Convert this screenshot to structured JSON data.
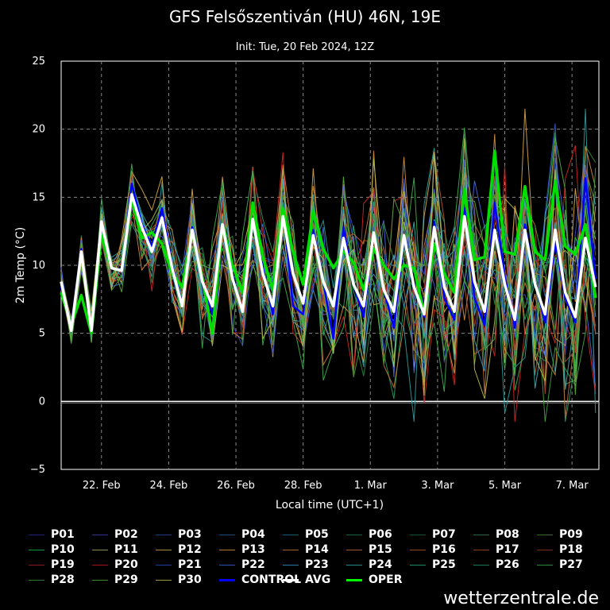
{
  "chart_data": {
    "type": "line",
    "title": "GFS Felsőszentiván (HU) 46N, 19E",
    "subtitle": "Init: Tue, 20 Feb 2024, 12Z",
    "ylabel": "2m Temp (°C)",
    "xlabel": "Local time (UTC+1)",
    "ylim": [
      -5,
      25
    ],
    "yticks": [
      "25",
      "20",
      "15",
      "10",
      "5",
      "0",
      "−5"
    ],
    "ytick_values": [
      25,
      20,
      15,
      10,
      5,
      0,
      -5
    ],
    "xlim": [
      0,
      160
    ],
    "xticks": [
      {
        "label": "22. Feb",
        "x": 12
      },
      {
        "label": "24. Feb",
        "x": 32
      },
      {
        "label": "26. Feb",
        "x": 52
      },
      {
        "label": "28. Feb",
        "x": 72
      },
      {
        "label": "1. Mar",
        "x": 92
      },
      {
        "label": "3. Mar",
        "x": 112
      },
      {
        "label": "5. Mar",
        "x": 132
      },
      {
        "label": "7. Mar",
        "x": 152
      }
    ],
    "x": [
      0,
      3,
      6,
      9,
      12,
      15,
      18,
      21,
      24,
      27,
      30,
      33,
      36,
      39,
      42,
      45,
      48,
      51,
      54,
      57,
      60,
      63,
      66,
      69,
      72,
      75,
      78,
      81,
      84,
      87,
      90,
      93,
      96,
      99,
      102,
      105,
      108,
      111,
      114,
      117,
      120,
      123,
      126,
      129,
      132,
      135,
      138,
      141,
      144,
      147,
      150,
      153,
      156,
      159
    ],
    "avg": [
      8.8,
      5.2,
      11.0,
      5.2,
      13.2,
      9.8,
      9.6,
      15.2,
      12.8,
      11.0,
      13.5,
      9.8,
      7.0,
      12.6,
      8.8,
      7.0,
      13.0,
      9.0,
      6.6,
      13.4,
      9.4,
      7.0,
      13.6,
      9.4,
      7.2,
      12.2,
      8.8,
      7.0,
      12.0,
      8.6,
      7.0,
      12.4,
      8.2,
      6.6,
      12.2,
      8.4,
      6.4,
      12.8,
      8.4,
      6.6,
      13.6,
      8.8,
      6.6,
      12.6,
      8.6,
      6.0,
      12.6,
      8.6,
      6.4,
      12.6,
      8.0,
      6.2,
      12.0,
      8.4
    ],
    "oper": [
      8.0,
      5.6,
      7.8,
      5.0,
      12.2,
      9.8,
      9.6,
      14.8,
      12.0,
      12.4,
      11.6,
      9.4,
      8.4,
      12.4,
      9.0,
      5.0,
      13.0,
      10.0,
      8.0,
      14.6,
      10.6,
      8.2,
      14.2,
      11.0,
      8.6,
      14.0,
      11.2,
      9.8,
      11.0,
      10.2,
      8.2,
      11.2,
      10.0,
      9.0,
      10.0,
      9.8,
      6.4,
      11.6,
      9.4,
      8.0,
      15.6,
      10.4,
      10.6,
      18.4,
      11.0,
      10.8,
      15.8,
      11.0,
      10.4,
      16.2,
      11.4,
      10.8,
      13.0,
      7.6
    ],
    "control": [
      8.4,
      5.6,
      11.2,
      5.2,
      13.0,
      9.8,
      9.6,
      16.0,
      13.0,
      11.4,
      14.2,
      10.0,
      7.2,
      12.8,
      8.6,
      6.4,
      13.0,
      9.2,
      6.6,
      13.2,
      9.8,
      6.4,
      14.2,
      7.0,
      6.4,
      12.6,
      8.8,
      4.6,
      12.8,
      8.6,
      6.2,
      12.4,
      8.2,
      5.4,
      12.0,
      8.6,
      6.2,
      13.2,
      7.6,
      6.0,
      14.2,
      7.6,
      5.6,
      14.6,
      9.2,
      5.4,
      13.0,
      8.8,
      5.8,
      11.8,
      7.6,
      5.8,
      16.4,
      9.0
    ],
    "legend": [
      {
        "label": "P01",
        "color": "#1a237e"
      },
      {
        "label": "P02",
        "color": "#283593"
      },
      {
        "label": "P03",
        "color": "#1e3a8a"
      },
      {
        "label": "P04",
        "color": "#1f4e79"
      },
      {
        "label": "P05",
        "color": "#155e75"
      },
      {
        "label": "P06",
        "color": "#166534"
      },
      {
        "label": "P07",
        "color": "#14532d"
      },
      {
        "label": "P08",
        "color": "#2f6b3a"
      },
      {
        "label": "P09",
        "color": "#3d6b2c"
      },
      {
        "label": "P10",
        "color": "#0f9d3a"
      },
      {
        "label": "P11",
        "color": "#8b8b4a"
      },
      {
        "label": "P12",
        "color": "#a68a3a"
      },
      {
        "label": "P13",
        "color": "#b07a2a"
      },
      {
        "label": "P14",
        "color": "#a0642a"
      },
      {
        "label": "P15",
        "color": "#9c5a2c"
      },
      {
        "label": "P16",
        "color": "#8f4a1c"
      },
      {
        "label": "P17",
        "color": "#8b3a1a"
      },
      {
        "label": "P18",
        "color": "#7a2a14"
      },
      {
        "label": "P19",
        "color": "#8b1a1a"
      },
      {
        "label": "P20",
        "color": "#a01414"
      },
      {
        "label": "P21",
        "color": "#1f3fa0"
      },
      {
        "label": "P22",
        "color": "#2a52b8"
      },
      {
        "label": "P23",
        "color": "#2a7aa8"
      },
      {
        "label": "P24",
        "color": "#2a8a8a"
      },
      {
        "label": "P25",
        "color": "#1f8a6a"
      },
      {
        "label": "P26",
        "color": "#1a7a55"
      },
      {
        "label": "P27",
        "color": "#2a8a3a"
      },
      {
        "label": "P28",
        "color": "#2f7a2f"
      },
      {
        "label": "P29",
        "color": "#3a8a2a"
      },
      {
        "label": "P30",
        "color": "#9a9a3a"
      },
      {
        "label": "CONTROL",
        "color": "#0000ff"
      },
      {
        "label": "AVG",
        "color": "#ffffff"
      },
      {
        "label": "OPER",
        "color": "#00ff00"
      }
    ]
  },
  "footer": {
    "credit": "wetterzentrale.de"
  }
}
